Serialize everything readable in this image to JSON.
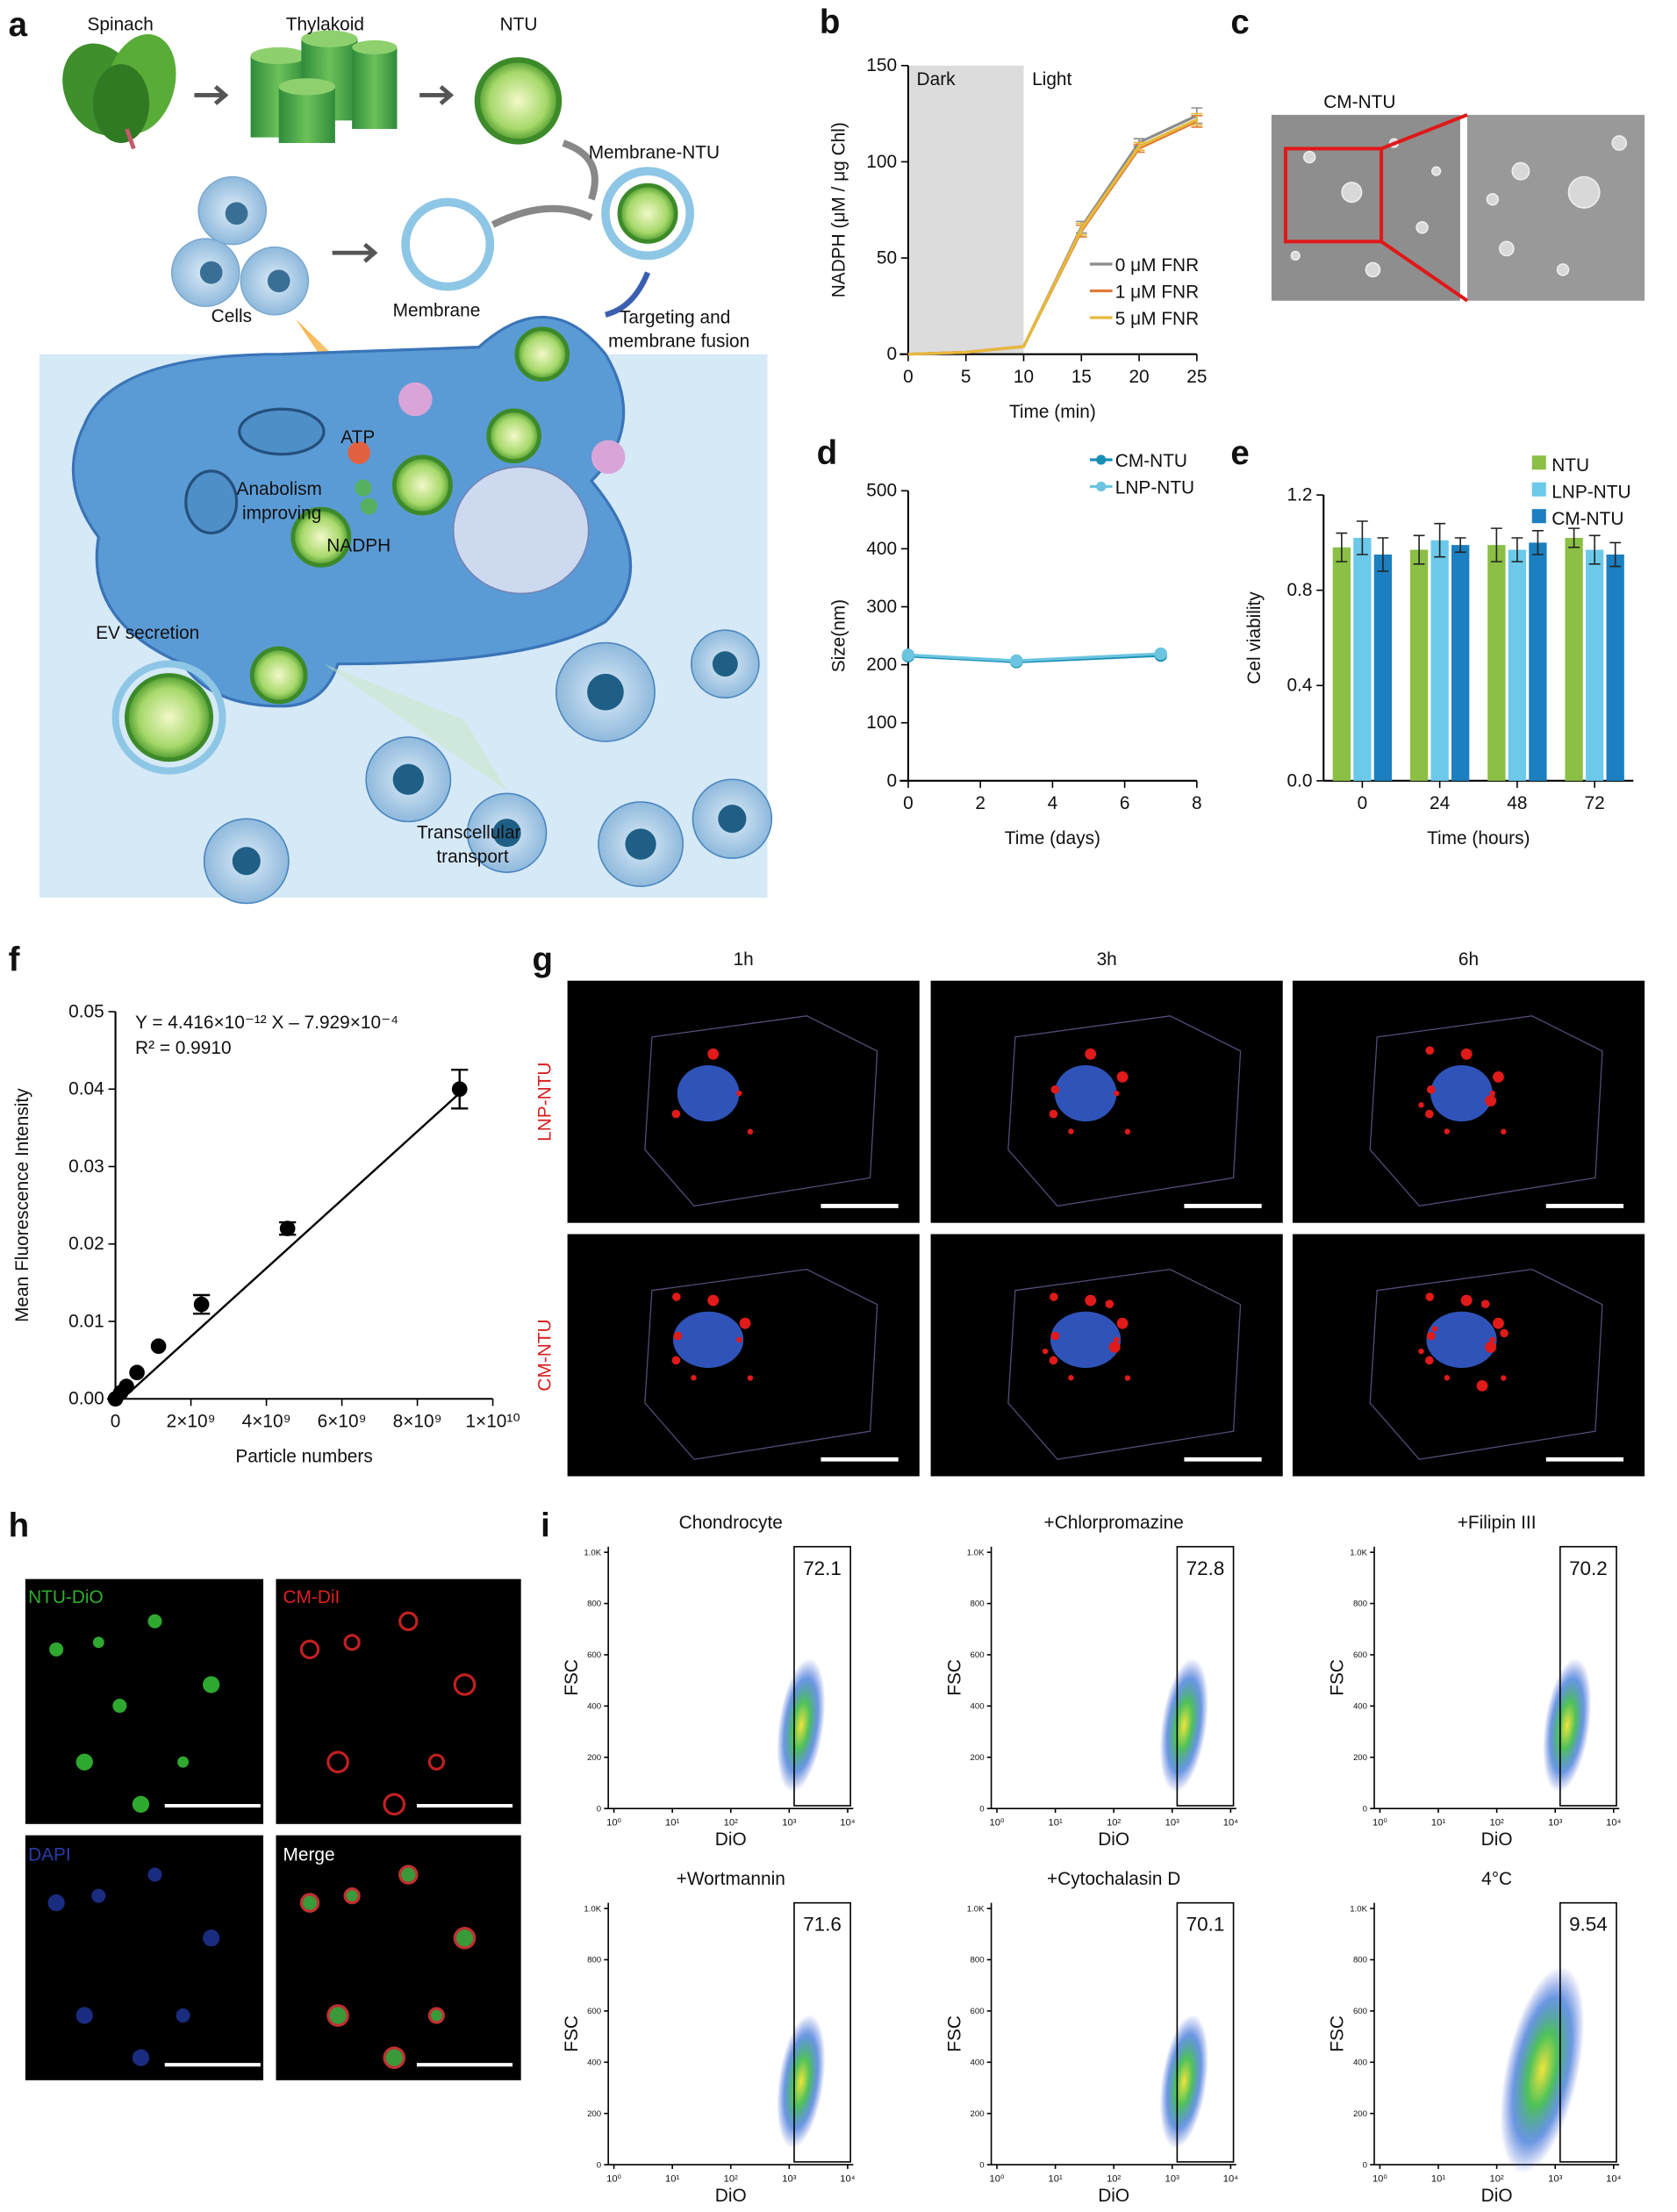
{
  "chart_data": [
    {
      "type": "line",
      "x": [
        0,
        5,
        10,
        15,
        20,
        25
      ],
      "series": [
        {
          "name": "0 μM FNR",
          "color": "#8c8c8c",
          "values": [
            0,
            1,
            4,
            66,
            110,
            124
          ],
          "errors": [
            0,
            0,
            0,
            3,
            2,
            4
          ]
        },
        {
          "name": "1 μM FNR",
          "color": "#e07b39",
          "values": [
            0,
            1,
            4,
            64,
            107,
            121
          ],
          "errors": [
            0,
            0,
            0,
            3,
            2,
            3
          ]
        },
        {
          "name": "5 μM FNR",
          "color": "#e8b93a",
          "values": [
            0,
            1,
            4,
            65,
            108,
            122
          ],
          "errors": [
            0,
            0,
            0,
            3,
            2,
            3
          ]
        }
      ],
      "xlim": [
        0,
        25
      ],
      "xticks": [
        0,
        5,
        10,
        15,
        20,
        25
      ],
      "ylim": [
        0,
        150
      ],
      "yticks": [
        0,
        50,
        100,
        150
      ],
      "xlabel": "Time (min)",
      "ylabel": "NADPH (μM / μg Chl)",
      "legend": "lower right",
      "shade": {
        "range": [
          0,
          10
        ],
        "labels": [
          "Dark",
          "Light"
        ]
      }
    },
    {
      "type": "line",
      "x": [
        0,
        3,
        7
      ],
      "series": [
        {
          "name": "CM-NTU",
          "color": "#1a8fb5",
          "values": [
            215,
            205,
            216
          ],
          "errors": [
            5,
            5,
            5
          ]
        },
        {
          "name": "LNP-NTU",
          "color": "#6cc5e0",
          "values": [
            217,
            207,
            219
          ],
          "errors": [
            5,
            5,
            5
          ]
        }
      ],
      "xlim": [
        0,
        8
      ],
      "xticks": [
        0,
        2,
        4,
        6,
        8
      ],
      "ylim": [
        0,
        500
      ],
      "yticks": [
        0,
        100,
        200,
        300,
        400,
        500
      ],
      "xlabel": "Time (days)",
      "ylabel": "Size(nm)",
      "legend": "upper right"
    },
    {
      "type": "bar",
      "categories": [
        "0",
        "24",
        "48",
        "72"
      ],
      "series": [
        {
          "name": "NTU",
          "color": "#8bbf45",
          "values": [
            0.98,
            0.97,
            0.99,
            1.02
          ],
          "errors": [
            0.06,
            0.06,
            0.07,
            0.04
          ]
        },
        {
          "name": "LNP-NTU",
          "color": "#6cc9ea",
          "values": [
            1.02,
            1.01,
            0.97,
            0.97
          ],
          "errors": [
            0.07,
            0.07,
            0.05,
            0.06
          ]
        },
        {
          "name": "CM-NTU",
          "color": "#1c7fc0",
          "values": [
            0.95,
            0.99,
            1.0,
            0.95
          ],
          "errors": [
            0.07,
            0.03,
            0.05,
            0.05
          ]
        }
      ],
      "ylim": [
        0,
        1.2
      ],
      "yticks": [
        {
          "value": 0,
          "label": "0.0"
        },
        0.4,
        0.8,
        1.2
      ],
      "xlabel": "Time (hours)",
      "ylabel": "Cel viability",
      "legend": "upper right"
    },
    {
      "type": "scatter",
      "x": [
        0,
        140000000,
        290000000,
        570000000,
        1140000000,
        2280000000,
        4560000000,
        9120000000
      ],
      "values": [
        0,
        0.0008,
        0.0016,
        0.0034,
        0.0068,
        0.0122,
        0.022,
        0.04
      ],
      "errors": [
        0,
        0,
        0,
        0,
        0,
        0.0012,
        0.0008,
        0.0025
      ],
      "fit": {
        "slope": 4.416e-12,
        "intercept": -0.0007929
      },
      "equation": "Y = 4.416×10⁻¹² X – 7.929×10⁻⁴",
      "r2": "R² = 0.9910",
      "xlim": [
        0,
        10000000000
      ],
      "xticks": [
        0,
        {
          "value": 2000000000,
          "label": "2×10⁹"
        },
        {
          "value": 4000000000,
          "label": "4×10⁹"
        },
        {
          "value": 6000000000,
          "label": "6×10⁹"
        },
        {
          "value": 8000000000,
          "label": "8×10⁹"
        },
        {
          "value": 10000000000,
          "label": "1×10¹⁰"
        }
      ],
      "ylim": [
        0,
        0.05
      ],
      "yticks": [
        {
          "value": 0,
          "label": "0.00"
        },
        0.01,
        0.02,
        0.03,
        0.04,
        0.05
      ],
      "xlabel": "Particle numbers",
      "ylabel": "Mean Fluorescence Intensity",
      "color": "#000000"
    }
  ],
  "figure": {
    "letters": [
      "a",
      "b",
      "c",
      "d",
      "e",
      "f",
      "g",
      "h",
      "i"
    ],
    "a": {
      "spinach": "Spinach",
      "thylakoid": "Thylakoid",
      "ntu": "NTU",
      "membrane_ntu": "Membrane-NTU",
      "cells": "Cells",
      "membrane": "Membrane",
      "targeting": [
        "Targeting and",
        "membrane fusion"
      ],
      "atp": "ATP",
      "anabolism": [
        "Anabolism",
        "improving"
      ],
      "nadph": "NADPH",
      "ev": "EV secretion",
      "transcellular": [
        "Transcellular",
        "transport"
      ]
    },
    "c": {
      "label": "CM-NTU"
    },
    "g": {
      "columns": [
        "1h",
        "3h",
        "6h"
      ],
      "rows": [
        "LNP-NTU",
        "CM-NTU"
      ]
    },
    "h": {
      "channels": [
        "NTU-DiO",
        "CM-DiI",
        "DAPI",
        "Merge"
      ]
    },
    "i": {
      "x_label": "DiO",
      "y_label": "FSC",
      "y_ticks": [
        "0",
        "200",
        "400",
        "600",
        "800",
        "1.0K"
      ],
      "x_ticks": [
        "10⁰",
        "10¹",
        "10²",
        "10³",
        "10⁴"
      ],
      "plots": [
        {
          "title": "Chondrocyte",
          "gate": "72.1"
        },
        {
          "title": "+Chlorpromazine",
          "gate": "72.8"
        },
        {
          "title": "+Filipin III",
          "gate": "70.2"
        },
        {
          "title": "+Wortmannin",
          "gate": "71.6"
        },
        {
          "title": "+Cytochalasin D",
          "gate": "70.1"
        },
        {
          "title": "4°C",
          "gate": "9.54"
        }
      ]
    }
  }
}
